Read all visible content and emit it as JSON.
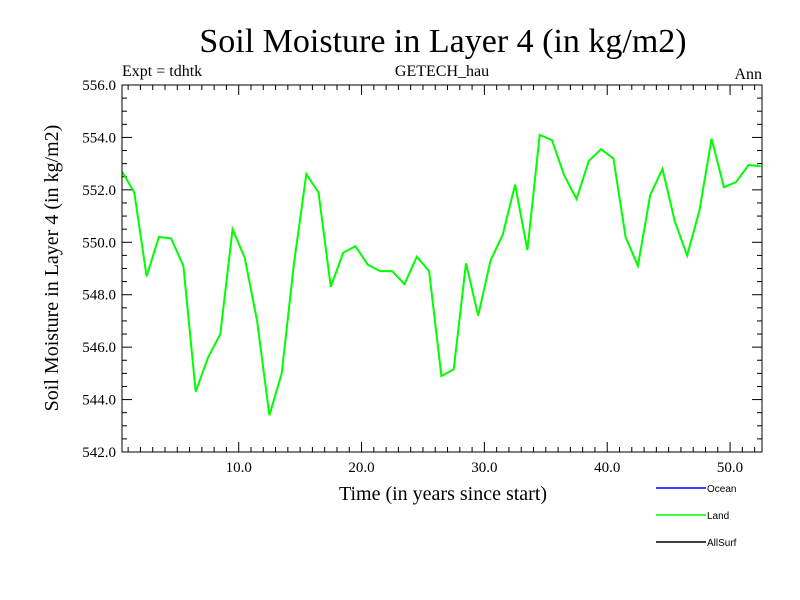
{
  "chart_data": {
    "type": "line",
    "title": "Soil Moisture in Layer 4 (in kg/m2)",
    "subtitle_left": "Expt = tdhtk",
    "subtitle_center": "GETECH_hau",
    "subtitle_right": "Ann",
    "xlabel": "Time (in years since start)",
    "ylabel": "Soil Moisture in Layer 4 (in kg/m2)",
    "xlim": [
      0.5,
      52.6
    ],
    "ylim": [
      542.0,
      556.0
    ],
    "x_ticks": [
      10,
      20,
      30,
      40,
      50
    ],
    "x_tick_labels": [
      "10.0",
      "20.0",
      "30.0",
      "40.0",
      "50.0"
    ],
    "y_ticks": [
      542,
      544,
      546,
      548,
      550,
      552,
      554,
      556
    ],
    "y_tick_labels": [
      "542.0",
      "544.0",
      "546.0",
      "548.0",
      "550.0",
      "552.0",
      "554.0",
      "556.0"
    ],
    "legend": [
      {
        "name": "Ocean",
        "color": "#0000ff"
      },
      {
        "name": "Land",
        "color": "#00ff00"
      },
      {
        "name": "AllSurf",
        "color": "#000000"
      }
    ],
    "series": [
      {
        "name": "Land",
        "color": "#00ff00",
        "x": [
          0.5,
          1.5,
          2.5,
          3.5,
          4.5,
          5.5,
          6.5,
          7.5,
          8.5,
          9.5,
          10.5,
          11.5,
          12.5,
          13.5,
          14.5,
          15.5,
          16.5,
          17.5,
          18.5,
          19.5,
          20.5,
          21.5,
          22.5,
          23.5,
          24.5,
          25.5,
          26.5,
          27.5,
          28.5,
          29.5,
          30.5,
          31.5,
          32.5,
          33.5,
          34.5,
          35.5,
          36.5,
          37.5,
          38.5,
          39.5,
          40.5,
          41.5,
          42.5,
          43.5,
          44.5,
          45.5,
          46.5,
          47.5,
          48.5,
          49.5,
          50.5,
          51.5,
          52.5
        ],
        "values": [
          552.7,
          551.9,
          548.7,
          550.2,
          550.15,
          549.1,
          544.3,
          545.6,
          546.5,
          550.5,
          549.4,
          547.0,
          543.4,
          545.0,
          549.2,
          552.6,
          551.9,
          548.3,
          549.6,
          549.85,
          549.15,
          548.9,
          548.9,
          548.4,
          549.45,
          548.9,
          544.9,
          545.15,
          549.2,
          547.2,
          549.3,
          550.3,
          552.2,
          549.7,
          554.1,
          553.9,
          552.55,
          551.65,
          553.1,
          553.55,
          553.2,
          550.2,
          549.1,
          551.8,
          552.8,
          550.8,
          549.5,
          551.2,
          553.95,
          552.1,
          552.3,
          552.95,
          552.9
        ]
      }
    ]
  }
}
